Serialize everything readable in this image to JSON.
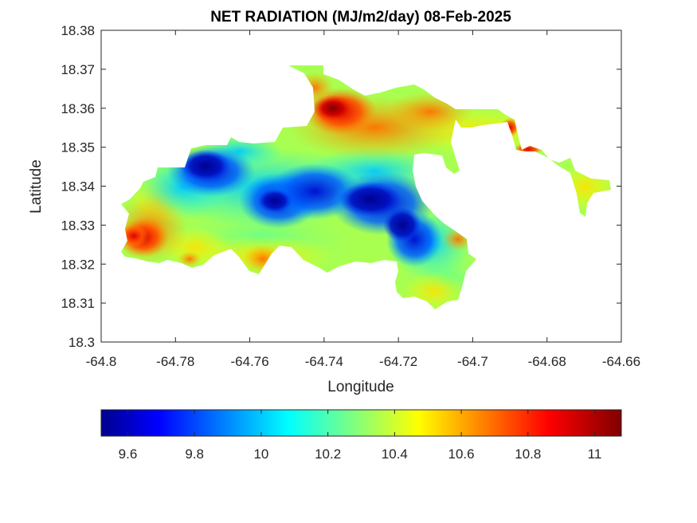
{
  "chart_data": {
    "type": "heatmap",
    "title": "NET RADIATION (MJ/m2/day) 08-Feb-2025",
    "xlabel": "Longitude",
    "ylabel": "Latitude",
    "xlim": [
      -64.8,
      -64.66
    ],
    "ylim": [
      18.3,
      18.38
    ],
    "xticks": [
      "-64.8",
      "-64.78",
      "-64.76",
      "-64.74",
      "-64.72",
      "-64.7",
      "-64.68",
      "-64.66"
    ],
    "yticks": [
      "18.3",
      "18.31",
      "18.32",
      "18.33",
      "18.34",
      "18.35",
      "18.36",
      "18.37",
      "18.38"
    ],
    "colormap": "jet",
    "colorbar": {
      "range": [
        9.52,
        11.08
      ],
      "ticks": [
        "9.6",
        "9.8",
        "10",
        "10.2",
        "10.4",
        "10.6",
        "10.8",
        "11"
      ],
      "location": "bottom"
    },
    "grid": false,
    "features": [
      {
        "lon": -64.7725,
        "lat": 18.3435,
        "value": 9.6
      },
      {
        "lon": -64.7283,
        "lat": 18.3375,
        "value": 9.55
      },
      {
        "lon": -64.7215,
        "lat": 18.3315,
        "value": 9.65
      },
      {
        "lon": -64.7515,
        "lat": 18.3365,
        "value": 9.85
      },
      {
        "lon": -64.7375,
        "lat": 18.3592,
        "value": 11.05
      },
      {
        "lon": -64.7885,
        "lat": 18.3268,
        "value": 10.9
      },
      {
        "lon": -64.7095,
        "lat": 18.3255,
        "value": 10.75
      }
    ]
  }
}
